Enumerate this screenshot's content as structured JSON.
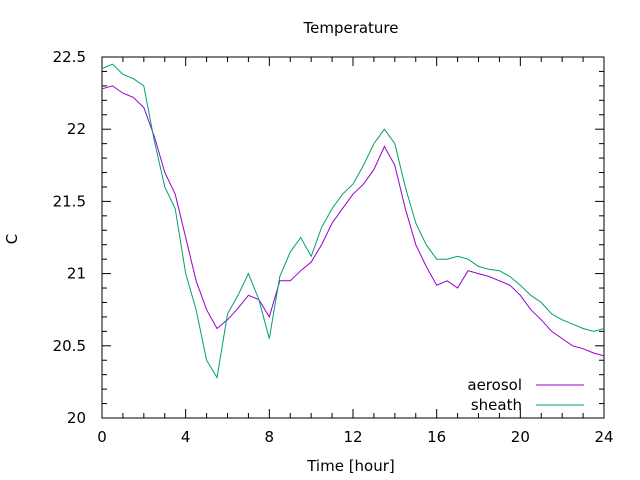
{
  "chart_data": {
    "type": "line",
    "title": "Temperature",
    "xlabel": "Time [hour]",
    "ylabel": "C",
    "xlim": [
      0,
      24
    ],
    "ylim": [
      20,
      22.5
    ],
    "xticks": [
      0,
      4,
      8,
      12,
      16,
      20,
      24
    ],
    "yticks": [
      20,
      20.5,
      21,
      21.5,
      22,
      22.5
    ],
    "grid": false,
    "legend": "bottom-right",
    "series": [
      {
        "name": "aerosol",
        "color": "#9400d3",
        "x": [
          0,
          0.5,
          1,
          1.5,
          2,
          2.5,
          3,
          3.5,
          4,
          4.5,
          5,
          5.5,
          6,
          6.5,
          7,
          7.5,
          8,
          8.5,
          9,
          9.5,
          10,
          10.5,
          11,
          11.5,
          12,
          12.5,
          13,
          13.5,
          14,
          14.5,
          15,
          15.5,
          16,
          16.5,
          17,
          17.5,
          18,
          18.5,
          19,
          19.5,
          20,
          20.5,
          21,
          21.5,
          22,
          22.5,
          23,
          23.5,
          24
        ],
        "values": [
          22.28,
          22.3,
          22.25,
          22.22,
          22.15,
          21.95,
          21.7,
          21.55,
          21.25,
          20.95,
          20.75,
          20.62,
          20.68,
          20.76,
          20.85,
          20.82,
          20.7,
          20.95,
          20.95,
          21.02,
          21.08,
          21.2,
          21.35,
          21.45,
          21.55,
          21.62,
          21.72,
          21.88,
          21.75,
          21.45,
          21.2,
          21.05,
          20.92,
          20.95,
          20.9,
          21.02,
          21.0,
          20.98,
          20.95,
          20.92,
          20.85,
          20.75,
          20.68,
          20.6,
          20.55,
          20.5,
          20.48,
          20.45,
          20.43
        ]
      },
      {
        "name": "sheath",
        "color": "#009e73",
        "x": [
          0,
          0.5,
          1,
          1.5,
          2,
          2.5,
          3,
          3.5,
          4,
          4.5,
          5,
          5.5,
          6,
          6.5,
          7,
          7.5,
          8,
          8.5,
          9,
          9.5,
          10,
          10.5,
          11,
          11.5,
          12,
          12.5,
          13,
          13.5,
          14,
          14.5,
          15,
          15.5,
          16,
          16.5,
          17,
          17.5,
          18,
          18.5,
          19,
          19.5,
          20,
          20.5,
          21,
          21.5,
          22,
          22.5,
          23,
          23.5,
          24
        ],
        "values": [
          22.42,
          22.45,
          22.38,
          22.35,
          22.3,
          21.92,
          21.6,
          21.45,
          21.0,
          20.75,
          20.4,
          20.28,
          20.72,
          20.85,
          21.0,
          20.82,
          20.55,
          20.98,
          21.15,
          21.25,
          21.12,
          21.32,
          21.45,
          21.55,
          21.62,
          21.75,
          21.9,
          22.0,
          21.9,
          21.6,
          21.35,
          21.2,
          21.1,
          21.1,
          21.12,
          21.1,
          21.05,
          21.03,
          21.02,
          20.98,
          20.92,
          20.85,
          20.8,
          20.72,
          20.68,
          20.65,
          20.62,
          20.6,
          20.62
        ]
      }
    ]
  }
}
